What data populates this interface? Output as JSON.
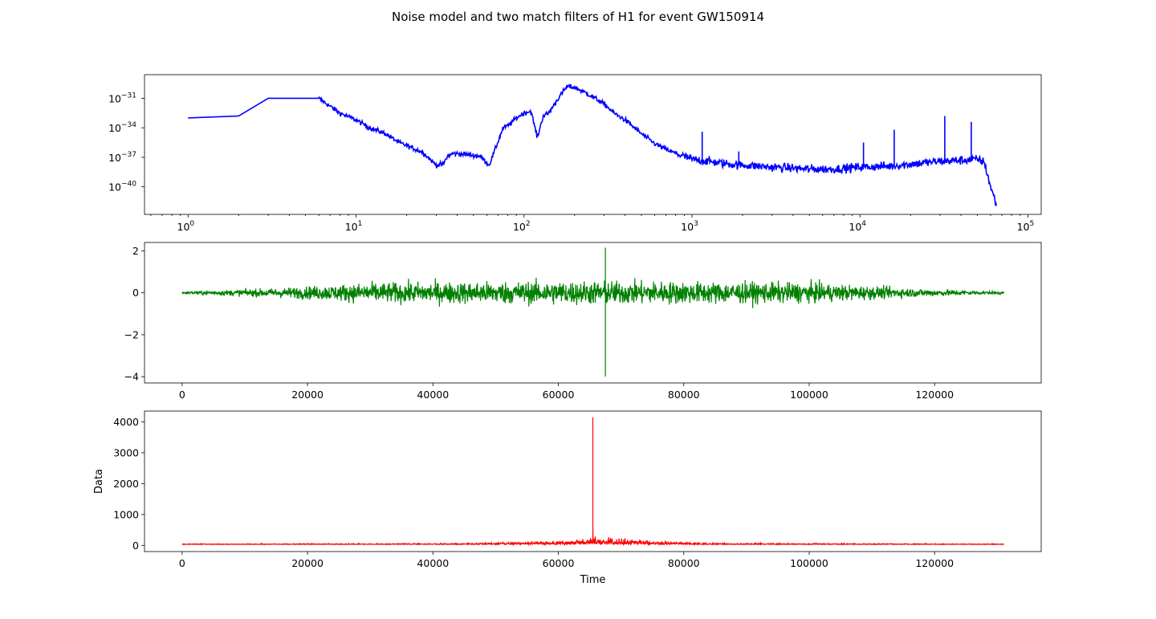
{
  "figure": {
    "title": "Noise model and two match filters of H1 for event GW150914"
  },
  "chart_data": [
    {
      "type": "line",
      "scale": {
        "x": "log",
        "y": "log"
      },
      "xlim": [
        0.55,
        120000
      ],
      "ylim_exp": [
        -42.8,
        -28.6
      ],
      "xticks": [
        {
          "value": 1,
          "base": "10",
          "exp": "0"
        },
        {
          "value": 10,
          "base": "10",
          "exp": "1"
        },
        {
          "value": 100,
          "base": "10",
          "exp": "2"
        },
        {
          "value": 1000,
          "base": "10",
          "exp": "3"
        },
        {
          "value": 10000,
          "base": "10",
          "exp": "4"
        },
        {
          "value": 100000,
          "base": "10",
          "exp": "5"
        }
      ],
      "yticks": [
        {
          "value": -31,
          "base": "10",
          "exp": "−31"
        },
        {
          "value": -34,
          "base": "10",
          "exp": "−34"
        },
        {
          "value": -37,
          "base": "10",
          "exp": "−37"
        },
        {
          "value": -40,
          "base": "10",
          "exp": "−40"
        }
      ],
      "series": [
        {
          "color": "#0000ff",
          "x": [
            1,
            2,
            3,
            6,
            8,
            10,
            12,
            15,
            18,
            20,
            25,
            30,
            33,
            35,
            38,
            45,
            55,
            62,
            68,
            75,
            80,
            90,
            100,
            110,
            120,
            130,
            140,
            160,
            180,
            200,
            230,
            260,
            300,
            350,
            400,
            500,
            600,
            700,
            800,
            1000,
            1500,
            2000,
            3000,
            4000,
            5000,
            7000,
            10000,
            15000,
            20000,
            30000,
            40000,
            50000,
            55000,
            60000,
            65000
          ],
          "y_exp": [
            -33.0,
            -32.8,
            -31.0,
            -31.0,
            -32.5,
            -33.2,
            -34.0,
            -34.6,
            -35.5,
            -35.8,
            -36.5,
            -37.8,
            -37.7,
            -36.9,
            -36.6,
            -36.7,
            -36.9,
            -37.8,
            -36.0,
            -34.0,
            -33.8,
            -33.0,
            -32.5,
            -32.3,
            -35.0,
            -32.8,
            -32.5,
            -31.0,
            -29.8,
            -29.9,
            -30.4,
            -30.9,
            -31.6,
            -32.6,
            -33.2,
            -34.6,
            -35.6,
            -36.2,
            -36.6,
            -37.2,
            -37.6,
            -37.8,
            -38.0,
            -38.1,
            -38.2,
            -38.2,
            -38.0,
            -37.9,
            -37.7,
            -37.4,
            -37.3,
            -37.2,
            -37.5,
            -40.0,
            -41.8
          ],
          "spikes": [
            {
              "x": 1150,
              "y_exp": -34.4
            },
            {
              "x": 1900,
              "y_exp": -36.4
            },
            {
              "x": 10500,
              "y_exp": -35.5
            },
            {
              "x": 16000,
              "y_exp": -34.2
            },
            {
              "x": 32000,
              "y_exp": -32.8
            },
            {
              "x": 46000,
              "y_exp": -33.4
            }
          ]
        }
      ]
    },
    {
      "type": "line",
      "xlim": [
        -6000,
        137000
      ],
      "ylim": [
        -4.3,
        2.4
      ],
      "xticks": [
        0,
        20000,
        40000,
        60000,
        80000,
        100000,
        120000
      ],
      "xtick_labels": [
        "0",
        "20000",
        "40000",
        "60000",
        "80000",
        "100000",
        "120000"
      ],
      "yticks": [
        2,
        0,
        -2,
        -4
      ],
      "ytick_labels": [
        "2",
        "0",
        "−2",
        "−4"
      ],
      "series": [
        {
          "color": "#008000",
          "x_range": [
            0,
            131072
          ],
          "envelope": {
            "x": [
              0,
              15000,
              30000,
              65000,
              100000,
              116000,
              131072
            ],
            "amp": [
              0.06,
              0.25,
              0.55,
              0.65,
              0.55,
              0.25,
              0.06
            ]
          },
          "spike": {
            "x": 67500,
            "max": 2.15,
            "min": -4.0
          }
        }
      ]
    },
    {
      "type": "line",
      "xlabel": "Time",
      "ylabel": "Data",
      "xlim": [
        -6000,
        137000
      ],
      "ylim": [
        -200,
        4350
      ],
      "xticks": [
        0,
        20000,
        40000,
        60000,
        80000,
        100000,
        120000
      ],
      "xtick_labels": [
        "0",
        "20000",
        "40000",
        "60000",
        "80000",
        "100000",
        "120000"
      ],
      "yticks": [
        0,
        1000,
        2000,
        3000,
        4000
      ],
      "ytick_labels": [
        "0",
        "1000",
        "2000",
        "3000",
        "4000"
      ],
      "series": [
        {
          "color": "#ff0000",
          "x_range": [
            0,
            131072
          ],
          "baseline": 30,
          "bump": {
            "x": [
              0,
              45000,
              58000,
              66000,
              74000,
              85000,
              131072
            ],
            "amp": [
              15,
              25,
              80,
              160,
              100,
              30,
              15
            ]
          },
          "spike": {
            "x": 65500,
            "max": 4150
          }
        }
      ]
    }
  ]
}
